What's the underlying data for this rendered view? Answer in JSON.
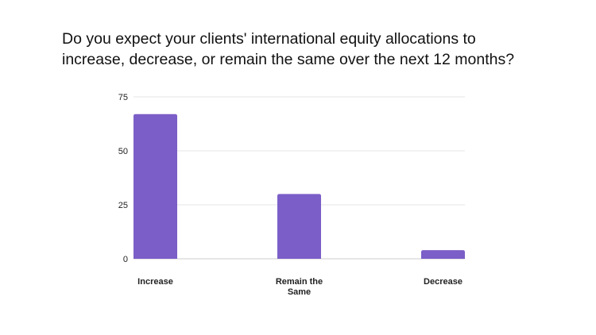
{
  "chart_data": {
    "type": "bar",
    "title": "Do you expect your clients' international equity allocations to\nincrease, decrease, or remain the same over the next 12 months?",
    "categories": [
      "Increase",
      "Remain the Same",
      "Decrease"
    ],
    "category_lines": [
      [
        "Increase"
      ],
      [
        "Remain the",
        "Same"
      ],
      [
        "Decrease"
      ]
    ],
    "values": [
      67,
      30,
      4
    ],
    "ylim": [
      0,
      75
    ],
    "yticks": [
      "0",
      "25",
      "50",
      "75"
    ],
    "ytick_values": [
      0,
      25,
      50,
      75
    ],
    "grid": true,
    "bar_color": "#7b5ec7",
    "grid_color": "#e6e6e6"
  }
}
